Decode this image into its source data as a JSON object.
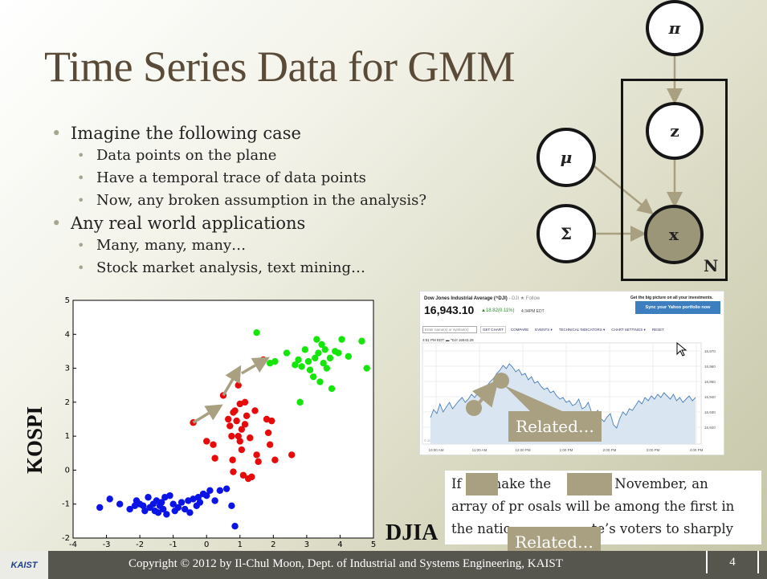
{
  "slide": {
    "title": "Time Series Data for GMM",
    "bullets": [
      {
        "level": 1,
        "text": "Imagine the following case"
      },
      {
        "level": 2,
        "text": "Data points on the plane"
      },
      {
        "level": 2,
        "text": "Have a temporal trace of data points"
      },
      {
        "level": 2,
        "text": "Now, any broken assumption in the analysis?"
      },
      {
        "level": 1,
        "text": "Any real world applications"
      },
      {
        "level": 2,
        "text": "Many, many, many…"
      },
      {
        "level": 2,
        "text": "Stock market analysis, text mining…"
      }
    ]
  },
  "graphical_model": {
    "nodes": {
      "pi": "π",
      "z": "z",
      "mu": "μ",
      "sigma": "Σ",
      "x": "x"
    },
    "plate_label": "N",
    "observed_fill": "#9c9678",
    "edge_color": "#a8a080"
  },
  "scatter": {
    "ylabel": "KOSPI",
    "xlabel": "DJIA",
    "xlim": [
      -4,
      5
    ],
    "ylim": [
      -2,
      5
    ],
    "x_ticks": [
      "-4",
      "-3",
      "-2",
      "-1",
      "0",
      "1",
      "2",
      "3",
      "4",
      "5"
    ],
    "y_ticks": [
      "-2",
      "-1",
      "0",
      "1",
      "2",
      "3",
      "4",
      "5"
    ],
    "colors": {
      "blue": "#0a14e6",
      "red": "#e60a0a",
      "green": "#14e60a",
      "arrow": "#a8a080"
    },
    "series": [
      {
        "color": "blue",
        "points": [
          [
            -3.2,
            -1.1
          ],
          [
            -2.9,
            -0.85
          ],
          [
            -2.6,
            -1.0
          ],
          [
            -2.3,
            -1.15
          ],
          [
            -2.1,
            -0.9
          ],
          [
            -2.0,
            -1.0
          ],
          [
            -1.85,
            -1.2
          ],
          [
            -1.75,
            -0.8
          ],
          [
            -1.7,
            -1.1
          ],
          [
            -1.6,
            -1.0
          ],
          [
            -1.5,
            -0.9
          ],
          [
            -1.45,
            -1.25
          ],
          [
            -1.4,
            -1.05
          ],
          [
            -1.35,
            -0.95
          ],
          [
            -1.3,
            -1.15
          ],
          [
            -1.2,
            -1.3
          ],
          [
            -1.1,
            -0.75
          ],
          [
            -1.0,
            -1.0
          ],
          [
            -0.95,
            -1.2
          ],
          [
            -0.85,
            -1.1
          ],
          [
            -0.75,
            -0.95
          ],
          [
            -0.65,
            -1.15
          ],
          [
            -0.5,
            -1.25
          ],
          [
            -0.4,
            -0.85
          ],
          [
            -0.3,
            -1.05
          ],
          [
            -0.25,
            -0.8
          ],
          [
            -0.1,
            -0.7
          ],
          [
            0.1,
            -0.6
          ],
          [
            0.25,
            -0.9
          ],
          [
            0.4,
            -0.6
          ],
          [
            0.75,
            -1.05
          ],
          [
            0.85,
            -1.65
          ],
          [
            0.0,
            -0.75
          ],
          [
            -1.9,
            -1.05
          ],
          [
            -1.55,
            -1.2
          ],
          [
            -0.55,
            -0.9
          ],
          [
            -1.25,
            -0.8
          ],
          [
            -2.15,
            -1.05
          ],
          [
            -0.2,
            -0.95
          ],
          [
            0.6,
            -0.55
          ]
        ]
      },
      {
        "color": "red",
        "points": [
          [
            -0.4,
            1.4
          ],
          [
            0.0,
            0.85
          ],
          [
            0.2,
            0.75
          ],
          [
            0.25,
            0.35
          ],
          [
            0.5,
            2.2
          ],
          [
            0.65,
            1.5
          ],
          [
            0.7,
            1.3
          ],
          [
            0.75,
            1.0
          ],
          [
            0.78,
            0.3
          ],
          [
            0.8,
            -0.05
          ],
          [
            0.85,
            1.75
          ],
          [
            0.9,
            1.45
          ],
          [
            0.95,
            2.5
          ],
          [
            1.0,
            1.95
          ],
          [
            1.05,
            1.2
          ],
          [
            1.05,
            0.6
          ],
          [
            1.1,
            -0.15
          ],
          [
            1.15,
            2.0
          ],
          [
            1.2,
            1.6
          ],
          [
            1.25,
            -0.25
          ],
          [
            1.3,
            0.95
          ],
          [
            1.35,
            -0.2
          ],
          [
            1.45,
            1.75
          ],
          [
            1.5,
            0.45
          ],
          [
            1.55,
            0.25
          ],
          [
            1.8,
            1.5
          ],
          [
            1.85,
            1.1
          ],
          [
            1.9,
            0.75
          ],
          [
            1.95,
            1.45
          ],
          [
            2.05,
            0.3
          ],
          [
            2.55,
            0.45
          ],
          [
            0.95,
            1.0
          ],
          [
            1.0,
            0.85
          ],
          [
            0.8,
            1.7
          ],
          [
            1.15,
            1.35
          ],
          [
            1.7,
            3.25
          ]
        ]
      },
      {
        "color": "green",
        "points": [
          [
            1.5,
            4.05
          ],
          [
            1.9,
            3.15
          ],
          [
            2.05,
            3.2
          ],
          [
            2.4,
            3.45
          ],
          [
            2.65,
            3.1
          ],
          [
            2.75,
            3.25
          ],
          [
            2.8,
            2.0
          ],
          [
            2.85,
            3.05
          ],
          [
            2.95,
            3.55
          ],
          [
            3.1,
            2.95
          ],
          [
            3.2,
            2.75
          ],
          [
            3.25,
            3.3
          ],
          [
            3.3,
            3.85
          ],
          [
            3.35,
            3.45
          ],
          [
            3.4,
            2.6
          ],
          [
            3.5,
            3.15
          ],
          [
            3.55,
            3.55
          ],
          [
            3.6,
            3.0
          ],
          [
            3.7,
            3.3
          ],
          [
            3.75,
            2.4
          ],
          [
            3.85,
            3.5
          ],
          [
            3.95,
            3.45
          ],
          [
            4.05,
            3.85
          ],
          [
            4.25,
            3.35
          ],
          [
            4.65,
            3.8
          ],
          [
            4.8,
            3.0
          ],
          [
            3.05,
            3.2
          ],
          [
            3.45,
            3.7
          ]
        ]
      }
    ],
    "arrows": [
      [
        [
          -0.4,
          1.4
        ],
        [
          0.35,
          1.85
        ]
      ],
      [
        [
          0.5,
          2.2
        ],
        [
          0.95,
          2.95
        ]
      ],
      [
        [
          1.05,
          2.85
        ],
        [
          1.75,
          3.25
        ]
      ]
    ]
  },
  "stock_widget": {
    "title": "Dow Jones Industrial Average (^DJI)",
    "exchange": "- DJI",
    "follow": "★ Follow",
    "price": "16,943.10",
    "change": "▲18.82(0.11%)",
    "time": "4:34PM EDT",
    "promo": "Get the big picture on all your investments.",
    "button": "Sync your Yahoo portfolio now",
    "search_placeholder": "Enter name(s) or symbol(s)",
    "get_chart": "GET CHART",
    "compare": "COMPARE",
    "events": "EVENTS ▾",
    "tech": "TECHNICAL INDICATORS ▾",
    "settings": "CHART SETTINGS ▾",
    "reset": "RESET",
    "legend": "3:51 PM EDT: ▬ ^DJI 16943.28",
    "y_ticks": [
      "16,970",
      "16,960",
      "16,950",
      "16,940",
      "16,930",
      "16,920"
    ],
    "x_ticks": [
      "10:00 AM",
      "11:00 AM",
      "12:00 PM",
      "1:00 PM",
      "2:00 PM",
      "3:00 PM",
      "4:00 PM"
    ],
    "copyright": "© 2014 Yahoo! Inc."
  },
  "annotations": {
    "related_1": "Related…",
    "related_2": "Related…"
  },
  "news": {
    "line1_a": "If",
    "line1_b": "make the",
    "line1_c": "in November, an",
    "line2": "array of pr   osals will be among the first in",
    "line3_a": "the natio",
    "line3_b": "te’s voters to sharply"
  },
  "footer": {
    "logo": "KAIST",
    "copyright": "Copyright © 2012 by Il-Chul Moon, Dept. of Industrial and Systems Engineering, KAIST",
    "page": "4"
  }
}
